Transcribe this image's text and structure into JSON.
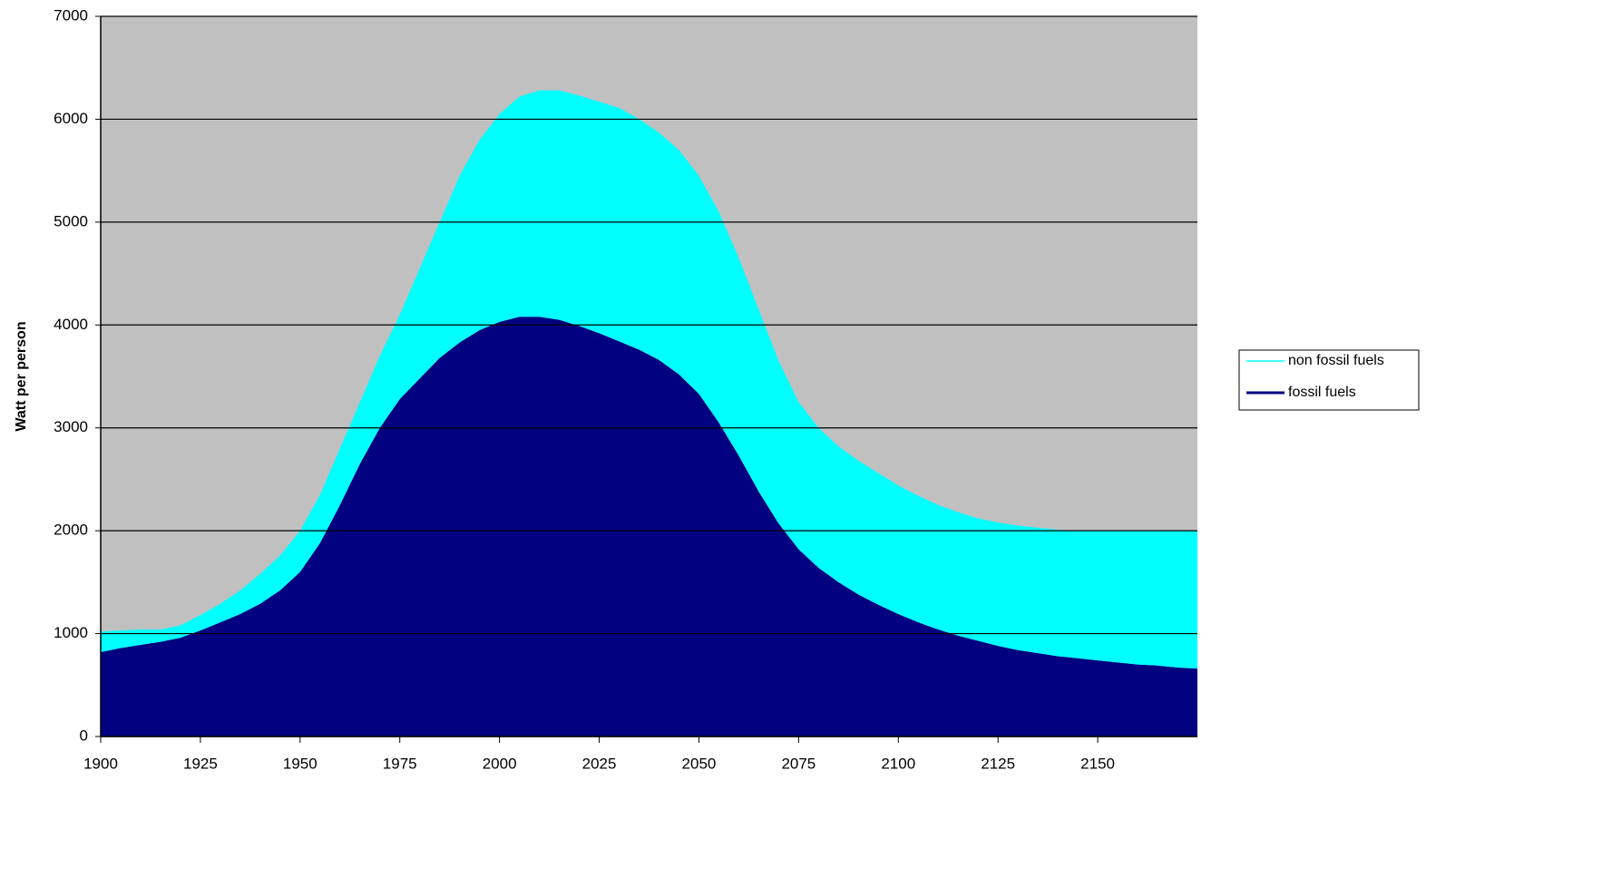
{
  "chart_data": {
    "type": "stacked_area",
    "ylabel": "Watt per person",
    "x": [
      1900,
      1905,
      1910,
      1915,
      1920,
      1925,
      1930,
      1935,
      1940,
      1945,
      1950,
      1955,
      1960,
      1965,
      1970,
      1975,
      1980,
      1985,
      1990,
      1995,
      2000,
      2005,
      2010,
      2015,
      2020,
      2025,
      2030,
      2035,
      2040,
      2045,
      2050,
      2055,
      2060,
      2065,
      2070,
      2075,
      2080,
      2085,
      2090,
      2095,
      2100,
      2105,
      2110,
      2115,
      2120,
      2125,
      2130,
      2135,
      2140,
      2145,
      2150,
      2155,
      2160,
      2165,
      2170,
      2175
    ],
    "series": [
      {
        "name": "fossil fuels",
        "color": "#000080",
        "values": [
          820,
          860,
          890,
          920,
          960,
          1030,
          1110,
          1190,
          1290,
          1420,
          1600,
          1880,
          2250,
          2650,
          3000,
          3280,
          3480,
          3680,
          3830,
          3950,
          4030,
          4080,
          4080,
          4050,
          3990,
          3920,
          3840,
          3760,
          3660,
          3520,
          3330,
          3050,
          2730,
          2380,
          2070,
          1820,
          1640,
          1500,
          1380,
          1280,
          1190,
          1110,
          1040,
          980,
          930,
          880,
          840,
          810,
          780,
          760,
          740,
          720,
          700,
          690,
          670,
          660
        ]
      },
      {
        "name": "non fossil fuels",
        "color": "#00ffff",
        "values": [
          200,
          170,
          150,
          120,
          120,
          150,
          180,
          230,
          290,
          340,
          400,
          470,
          550,
          600,
          700,
          820,
          1070,
          1320,
          1620,
          1850,
          2020,
          2140,
          2200,
          2230,
          2240,
          2250,
          2270,
          2240,
          2210,
          2180,
          2120,
          2050,
          1920,
          1770,
          1580,
          1430,
          1360,
          1320,
          1300,
          1280,
          1250,
          1230,
          1210,
          1200,
          1190,
          1200,
          1210,
          1220,
          1230,
          1240,
          1260,
          1280,
          1300,
          1310,
          1330,
          1340
        ]
      }
    ],
    "xlim": [
      1900,
      2175
    ],
    "xticks": [
      1900,
      1925,
      1950,
      1975,
      2000,
      2025,
      2050,
      2075,
      2100,
      2125,
      2150
    ],
    "ylim": [
      0,
      7000
    ],
    "yticks": [
      0,
      1000,
      2000,
      3000,
      4000,
      5000,
      6000,
      7000
    ],
    "grid": true,
    "plot_background": "#c0c0c0",
    "legend": "right"
  }
}
